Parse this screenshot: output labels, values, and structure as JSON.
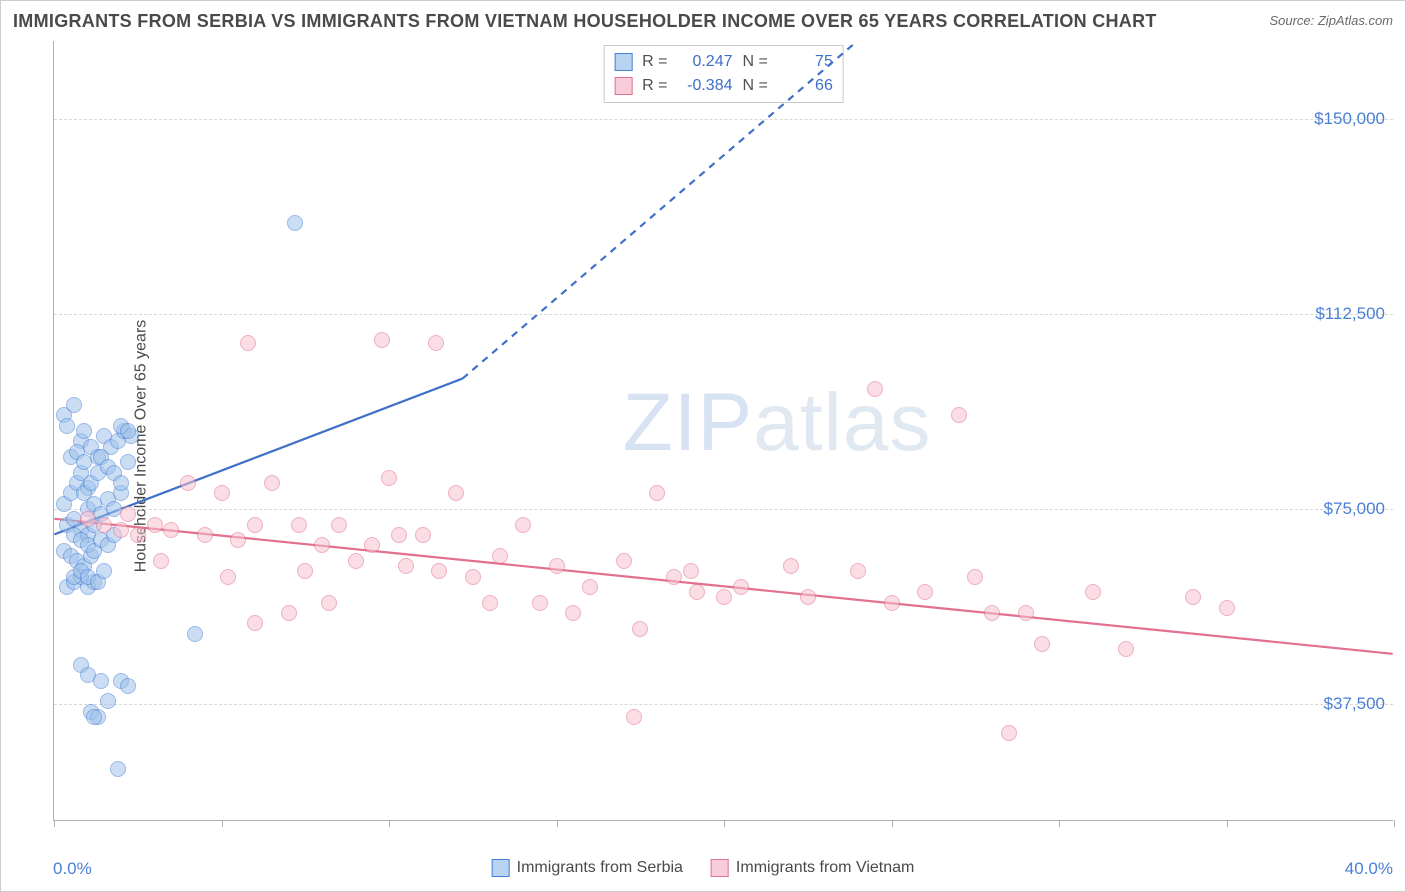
{
  "title": "IMMIGRANTS FROM SERBIA VS IMMIGRANTS FROM VIETNAM HOUSEHOLDER INCOME OVER 65 YEARS CORRELATION CHART",
  "source": "Source: ZipAtlas.com",
  "watermark_bold": "ZIP",
  "watermark_light": "atlas",
  "chart": {
    "type": "scatter",
    "background_color": "#ffffff",
    "grid_color": "#d8d8d8",
    "axis_color": "#b0b0b0",
    "y_axis_title": "Householder Income Over 65 years",
    "x_axis": {
      "min_label": "0.0%",
      "max_label": "40.0%",
      "xlim": [
        0,
        40
      ],
      "tick_positions_pct": [
        0,
        5,
        10,
        15,
        20,
        25,
        30,
        35,
        40
      ]
    },
    "y_axis": {
      "ylim": [
        15000,
        165000
      ],
      "ticks": [
        {
          "value": 37500,
          "label": "$37,500"
        },
        {
          "value": 75000,
          "label": "$75,000"
        },
        {
          "value": 112500,
          "label": "$112,500"
        },
        {
          "value": 150000,
          "label": "$150,000"
        }
      ],
      "label_color": "#4a7fd6",
      "label_fontsize": 17
    },
    "series": [
      {
        "name": "Immigrants from Serbia",
        "marker_fill": "#9fc3ea",
        "marker_stroke": "#4a7fd6",
        "marker_size": 16,
        "marker_opacity": 0.55,
        "R": "0.247",
        "N": "75",
        "trend": {
          "x1": 0,
          "y1": 70000,
          "x2": 12.2,
          "y2": 100000,
          "dash_after_x": 12.2,
          "x3": 24,
          "y3": 165000,
          "color": "#3f6fc9",
          "width": 2.2
        },
        "points": [
          [
            0.3,
            93000
          ],
          [
            0.4,
            91000
          ],
          [
            0.6,
            95000
          ],
          [
            0.8,
            88000
          ],
          [
            0.9,
            90000
          ],
          [
            0.3,
            76000
          ],
          [
            0.5,
            78000
          ],
          [
            0.7,
            80000
          ],
          [
            0.8,
            82000
          ],
          [
            1.0,
            79000
          ],
          [
            0.4,
            72000
          ],
          [
            0.6,
            73000
          ],
          [
            0.8,
            71000
          ],
          [
            1.0,
            70000
          ],
          [
            1.2,
            72000
          ],
          [
            0.3,
            67000
          ],
          [
            0.5,
            66000
          ],
          [
            0.7,
            65000
          ],
          [
            0.9,
            64000
          ],
          [
            1.1,
            66000
          ],
          [
            0.4,
            60000
          ],
          [
            0.6,
            61000
          ],
          [
            0.8,
            62000
          ],
          [
            1.0,
            60000
          ],
          [
            1.2,
            61000
          ],
          [
            0.5,
            85000
          ],
          [
            0.7,
            86000
          ],
          [
            0.9,
            84000
          ],
          [
            1.1,
            87000
          ],
          [
            1.3,
            85000
          ],
          [
            1.5,
            89000
          ],
          [
            1.7,
            87000
          ],
          [
            1.9,
            88000
          ],
          [
            2.1,
            90000
          ],
          [
            2.3,
            89000
          ],
          [
            2.0,
            91000
          ],
          [
            2.2,
            90000
          ],
          [
            1.0,
            75000
          ],
          [
            1.2,
            76000
          ],
          [
            1.4,
            74000
          ],
          [
            1.6,
            77000
          ],
          [
            1.8,
            75000
          ],
          [
            2.0,
            78000
          ],
          [
            0.6,
            70000
          ],
          [
            0.8,
            69000
          ],
          [
            1.0,
            68000
          ],
          [
            1.2,
            67000
          ],
          [
            1.4,
            69000
          ],
          [
            1.6,
            68000
          ],
          [
            1.8,
            70000
          ],
          [
            0.8,
            45000
          ],
          [
            1.0,
            43000
          ],
          [
            1.4,
            42000
          ],
          [
            1.6,
            38000
          ],
          [
            2.0,
            42000
          ],
          [
            2.2,
            41000
          ],
          [
            1.1,
            36000
          ],
          [
            1.3,
            35000
          ],
          [
            1.2,
            35000
          ],
          [
            1.9,
            25000
          ],
          [
            7.2,
            130000
          ],
          [
            4.2,
            51000
          ],
          [
            0.9,
            78000
          ],
          [
            1.1,
            80000
          ],
          [
            1.3,
            82000
          ],
          [
            1.4,
            85000
          ],
          [
            1.6,
            83000
          ],
          [
            1.8,
            82000
          ],
          [
            2.0,
            80000
          ],
          [
            2.2,
            84000
          ],
          [
            0.6,
            62000
          ],
          [
            0.8,
            63000
          ],
          [
            1.0,
            62000
          ],
          [
            1.3,
            61000
          ],
          [
            1.5,
            63000
          ]
        ]
      },
      {
        "name": "Immigrants from Vietnam",
        "marker_fill": "#f6c2d0",
        "marker_stroke": "#e2708e",
        "marker_size": 16,
        "marker_opacity": 0.55,
        "R": "-0.384",
        "N": "66",
        "trend": {
          "x1": 0,
          "y1": 73000,
          "x2": 40,
          "y2": 47000,
          "color": "#e2708e",
          "width": 2.2
        },
        "points": [
          [
            1.0,
            73000
          ],
          [
            1.5,
            72000
          ],
          [
            2.0,
            71000
          ],
          [
            2.2,
            74000
          ],
          [
            2.5,
            70000
          ],
          [
            3.0,
            72000
          ],
          [
            3.2,
            65000
          ],
          [
            3.5,
            71000
          ],
          [
            4.0,
            80000
          ],
          [
            4.5,
            70000
          ],
          [
            5.0,
            78000
          ],
          [
            5.2,
            62000
          ],
          [
            5.5,
            69000
          ],
          [
            6.0,
            72000
          ],
          [
            6.5,
            80000
          ],
          [
            7.0,
            55000
          ],
          [
            7.3,
            72000
          ],
          [
            7.5,
            63000
          ],
          [
            8.0,
            68000
          ],
          [
            8.2,
            57000
          ],
          [
            8.5,
            72000
          ],
          [
            9.0,
            65000
          ],
          [
            9.5,
            68000
          ],
          [
            10.0,
            81000
          ],
          [
            10.3,
            70000
          ],
          [
            10.5,
            64000
          ],
          [
            11.0,
            70000
          ],
          [
            11.5,
            63000
          ],
          [
            12.0,
            78000
          ],
          [
            12.5,
            62000
          ],
          [
            13.0,
            57000
          ],
          [
            13.3,
            66000
          ],
          [
            14.0,
            72000
          ],
          [
            14.5,
            57000
          ],
          [
            15.0,
            64000
          ],
          [
            15.5,
            55000
          ],
          [
            16.0,
            60000
          ],
          [
            17.0,
            65000
          ],
          [
            17.5,
            52000
          ],
          [
            18.0,
            78000
          ],
          [
            18.5,
            62000
          ],
          [
            19.0,
            63000
          ],
          [
            19.2,
            59000
          ],
          [
            20.0,
            58000
          ],
          [
            20.5,
            60000
          ],
          [
            22.0,
            64000
          ],
          [
            22.5,
            58000
          ],
          [
            24.0,
            63000
          ],
          [
            24.5,
            98000
          ],
          [
            25.0,
            57000
          ],
          [
            26.0,
            59000
          ],
          [
            27.0,
            93000
          ],
          [
            27.5,
            62000
          ],
          [
            28.0,
            55000
          ],
          [
            29.0,
            55000
          ],
          [
            29.5,
            49000
          ],
          [
            31.0,
            59000
          ],
          [
            32.0,
            48000
          ],
          [
            34.0,
            58000
          ],
          [
            35.0,
            56000
          ],
          [
            5.8,
            107000
          ],
          [
            9.8,
            107500
          ],
          [
            17.3,
            35000
          ],
          [
            28.5,
            32000
          ],
          [
            11.4,
            107000
          ],
          [
            6.0,
            53000
          ]
        ]
      }
    ],
    "stats_box": {
      "r_label": "R =",
      "n_label": "N ="
    },
    "legend": {
      "items": [
        {
          "swatch": "blue",
          "label": "Immigrants from Serbia"
        },
        {
          "swatch": "pink",
          "label": "Immigrants from Vietnam"
        }
      ]
    }
  }
}
